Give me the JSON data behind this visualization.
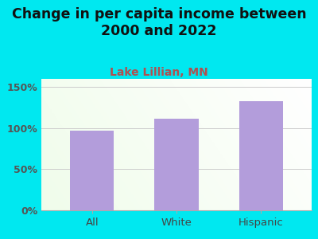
{
  "title": "Change in per capita income between\n2000 and 2022",
  "subtitle": "Lake Lillian, MN",
  "categories": [
    "All",
    "White",
    "Hispanic"
  ],
  "values": [
    97,
    112,
    133
  ],
  "bar_color": "#b39ddb",
  "title_fontsize": 12.5,
  "subtitle_fontsize": 10,
  "subtitle_color": "#b05050",
  "title_color": "#111111",
  "tick_label_color": "#555555",
  "xlabel_color": "#444444",
  "background_color": "#00e8f0",
  "ylim": [
    0,
    160
  ],
  "yticks": [
    0,
    50,
    100,
    150
  ],
  "yticklabels": [
    "0%",
    "50%",
    "100%",
    "150%"
  ],
  "grid_color": "#cccccc",
  "bar_width": 0.52
}
